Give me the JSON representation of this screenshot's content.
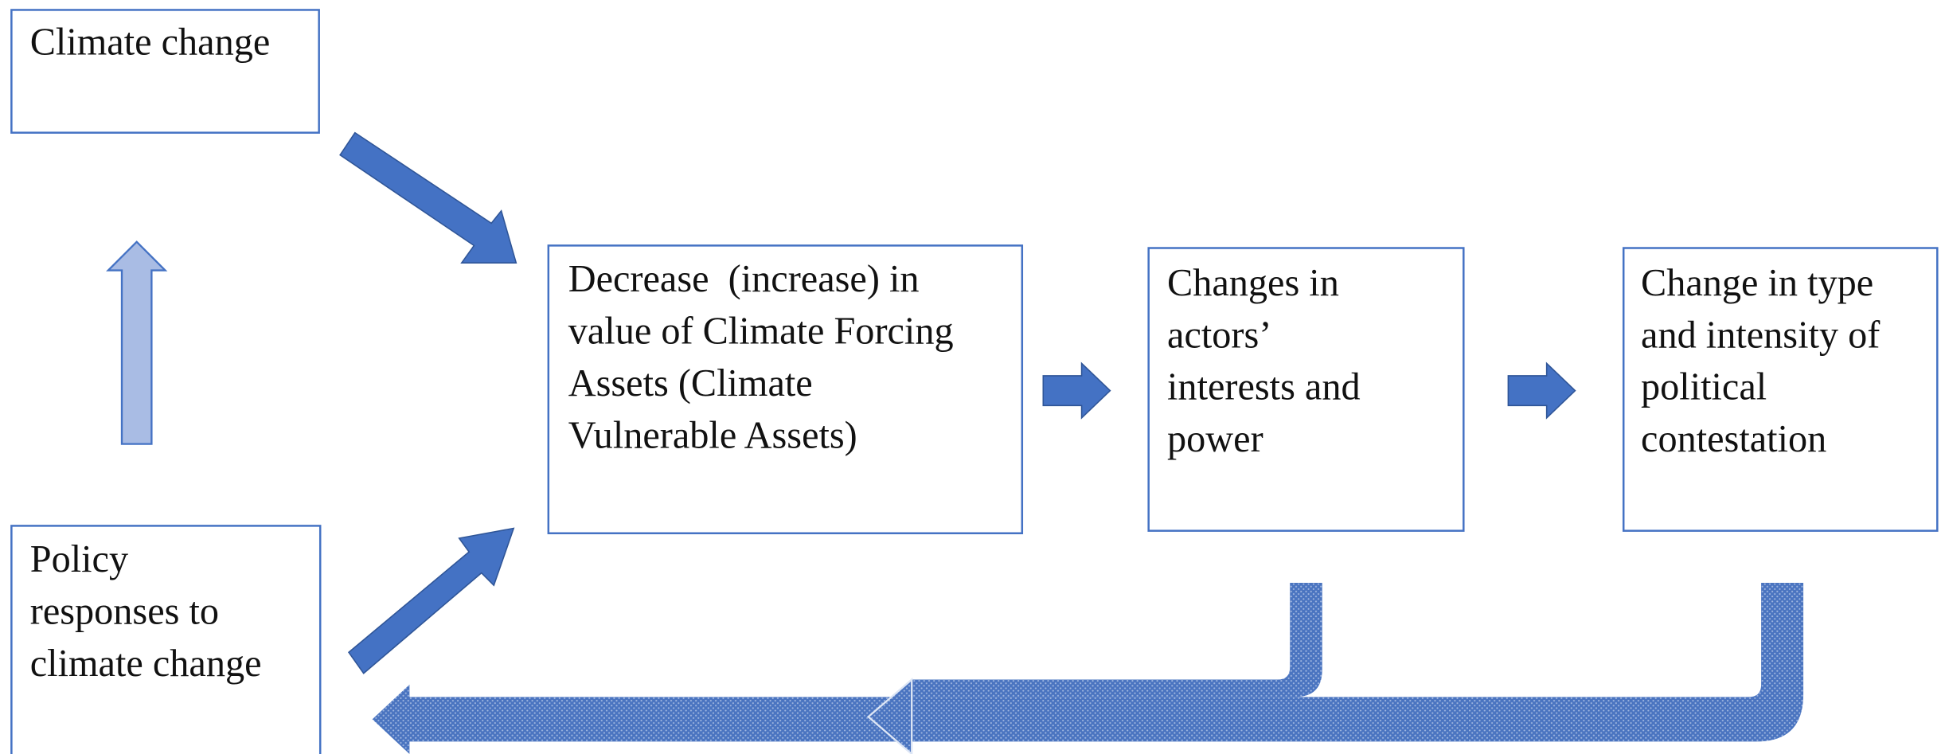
{
  "nodes": [
    {
      "lines": [
        "Climate change"
      ]
    },
    {
      "lines": [
        "Policy",
        "responses to",
        "climate change"
      ]
    },
    {
      "lines": [
        "Decrease  (increase) in",
        "value of Climate Forcing",
        "Assets (Climate",
        "Vulnerable Assets)"
      ]
    },
    {
      "lines": [
        "Changes in",
        "actors’",
        "interests and",
        "power"
      ]
    },
    {
      "lines": [
        "Change in type",
        "and intensity of",
        "political",
        "contestation"
      ]
    }
  ]
}
